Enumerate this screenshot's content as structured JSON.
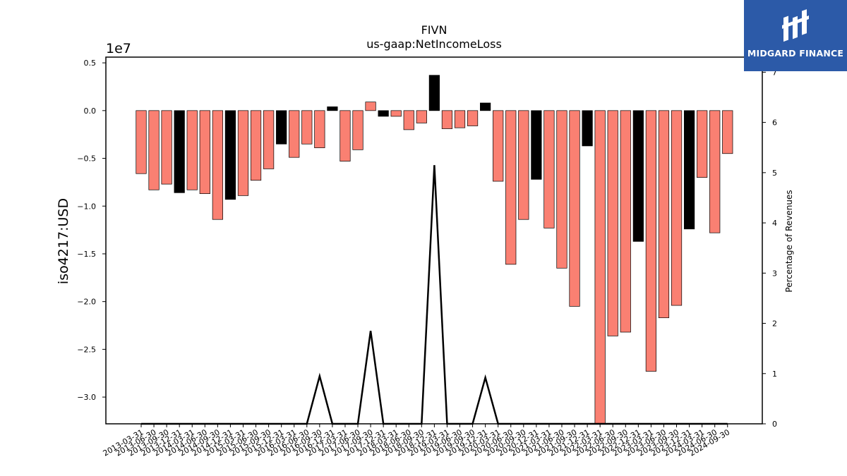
{
  "chart_data": {
    "type": "bar",
    "title": "FIVN",
    "subtitle": "us-gaap:NetIncomeLoss",
    "ylabel": "iso4217:USD",
    "y_offset_label": "1e7",
    "y2label": "Percentage of Revenues",
    "ylim": [
      -32800000.0,
      5600000.0
    ],
    "y2lim": [
      0,
      7.3
    ],
    "yticks": [
      "0.5",
      "0.0",
      "−0.5",
      "−1.0",
      "−1.5",
      "−2.0",
      "−2.5",
      "−3.0"
    ],
    "ytick_values": [
      5000000.0,
      0,
      -5000000.0,
      -10000000.0,
      -15000000.0,
      -20000000.0,
      -25000000.0,
      -30000000.0
    ],
    "y2ticks": [
      "0",
      "1",
      "2",
      "3",
      "4",
      "5",
      "6",
      "7"
    ],
    "grid": false,
    "colors": {
      "negative": "#fa8072",
      "annual": "#000000",
      "line": "#000000"
    },
    "categories": [
      "2013-03-31",
      "2013-06-30",
      "2013-09-30",
      "2013-12-31",
      "2014-03-31",
      "2014-06-30",
      "2014-09-30",
      "2014-12-31",
      "2015-03-31",
      "2015-06-30",
      "2015-09-30",
      "2015-12-31",
      "2016-03-31",
      "2016-06-30",
      "2016-09-30",
      "2016-12-31",
      "2017-03-31",
      "2017-06-30",
      "2017-09-30",
      "2017-12-31",
      "2018-03-31",
      "2018-06-30",
      "2018-09-30",
      "2018-12-31",
      "2019-03-31",
      "2019-06-30",
      "2019-09-30",
      "2019-12-31",
      "2020-03-31",
      "2020-06-30",
      "2020-09-30",
      "2020-12-31",
      "2021-03-31",
      "2021-06-30",
      "2021-09-30",
      "2021-12-31",
      "2022-03-31",
      "2022-06-30",
      "2022-09-30",
      "2022-12-31",
      "2023-03-31",
      "2023-06-30",
      "2023-09-30",
      "2023-12-31",
      "2024-03-31",
      "2024-06-30",
      "2024-09-30"
    ],
    "values": [
      -6600000,
      -8300000,
      -7700000,
      -8600000,
      -8300000,
      -8700000,
      -11400000,
      -9300000,
      -8900000,
      -7300000,
      -6100000,
      -3500000,
      -4900000,
      -3500000,
      -3900000,
      400000,
      -5300000,
      -4100000,
      900000,
      -600000,
      -600000,
      -2000000,
      -1300000,
      3700000,
      -1900000,
      -1800000,
      -1600000,
      800000,
      -7400000,
      -16100000,
      -11400000,
      -7200000,
      -12300000,
      -16500000,
      -20500000,
      -3700000,
      -32800000,
      -23600000,
      -23200000,
      -13700000,
      -27300000,
      -21700000,
      -20400000,
      -12400000,
      -7000000,
      -12800000,
      -4500000
    ],
    "annual": [
      false,
      false,
      false,
      true,
      false,
      false,
      false,
      true,
      false,
      false,
      false,
      true,
      false,
      false,
      false,
      true,
      false,
      false,
      false,
      true,
      false,
      false,
      false,
      true,
      false,
      false,
      false,
      true,
      false,
      false,
      false,
      true,
      false,
      false,
      false,
      true,
      false,
      false,
      false,
      true,
      false,
      false,
      false,
      true,
      false,
      false,
      false
    ],
    "percentage_of_revenues": [
      0,
      0,
      0,
      0,
      0,
      0,
      0,
      0,
      0,
      0,
      0,
      0,
      0,
      0,
      0.95,
      0,
      0,
      0,
      1.85,
      0,
      0,
      0,
      0,
      5.15,
      0,
      0,
      0,
      0.92,
      0,
      0,
      0,
      0,
      0,
      0,
      0,
      0,
      0,
      0,
      0,
      0,
      0,
      0,
      0,
      0,
      0,
      0,
      0
    ]
  },
  "logo": {
    "text": "MIDGARD FINANCE",
    "icon": "midgard-logo-icon"
  }
}
